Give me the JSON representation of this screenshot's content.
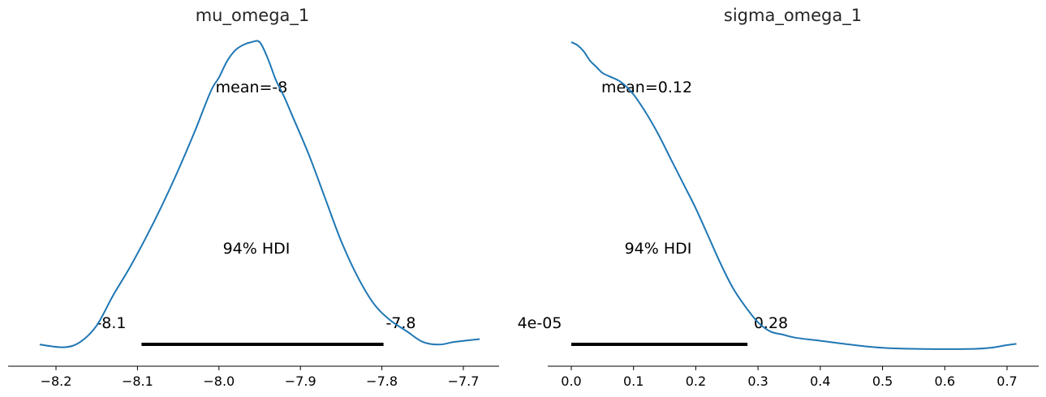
{
  "chart_data": [
    {
      "type": "line",
      "title": "mu_omega_1",
      "xlabel": "",
      "ylabel": "",
      "xlim": [
        -8.22,
        -7.68
      ],
      "xticks": [
        -8.2,
        -8.1,
        -8.0,
        -7.9,
        -7.8,
        -7.7
      ],
      "xtick_labels": [
        "−8.2",
        "−8.1",
        "−8.0",
        "−7.9",
        "−7.8",
        "−7.7"
      ],
      "grid": false,
      "color": "#1f77b4",
      "series": [
        {
          "x": [
            -8.22,
            -8.19,
            -8.17,
            -8.15,
            -8.13,
            -8.11,
            -8.09,
            -8.07,
            -8.05,
            -8.03,
            -8.01,
            -8.0,
            -7.99,
            -7.98,
            -7.97,
            -7.96,
            -7.95,
            -7.94,
            -7.93,
            -7.92,
            -7.91,
            -7.89,
            -7.87,
            -7.85,
            -7.83,
            -7.81,
            -7.79,
            -7.77,
            -7.75,
            -7.73,
            -7.71,
            -7.68
          ],
          "y": [
            0.02,
            0.01,
            0.03,
            0.09,
            0.2,
            0.3,
            0.41,
            0.53,
            0.66,
            0.8,
            0.95,
            1.0,
            1.06,
            1.1,
            1.12,
            1.13,
            1.13,
            1.07,
            0.99,
            0.93,
            0.86,
            0.72,
            0.56,
            0.4,
            0.27,
            0.17,
            0.11,
            0.07,
            0.03,
            0.02,
            0.03,
            0.04
          ]
        }
      ],
      "hdi": {
        "label": "94% HDI",
        "low": -8.095,
        "high": -7.798,
        "low_label": "-8.1",
        "high_label": "-7.8"
      },
      "mean_label": "mean=-8"
    },
    {
      "type": "line",
      "title": "sigma_omega_1",
      "xlabel": "",
      "ylabel": "",
      "xlim": [
        -0.04,
        0.76
      ],
      "xticks": [
        0.0,
        0.1,
        0.2,
        0.3,
        0.4,
        0.5,
        0.6,
        0.7
      ],
      "xtick_labels": [
        "0.0",
        "0.1",
        "0.2",
        "0.3",
        "0.4",
        "0.5",
        "0.6",
        "0.7"
      ],
      "grid": false,
      "color": "#1f77b4",
      "series": [
        {
          "x": [
            0.0,
            0.01,
            0.02,
            0.03,
            0.04,
            0.05,
            0.06,
            0.08,
            0.1,
            0.12,
            0.14,
            0.16,
            0.18,
            0.2,
            0.22,
            0.24,
            0.26,
            0.28,
            0.3,
            0.32,
            0.34,
            0.36,
            0.4,
            0.45,
            0.5,
            0.55,
            0.6,
            0.65,
            0.68,
            0.7,
            0.715
          ],
          "y": [
            1.0,
            0.99,
            0.97,
            0.94,
            0.92,
            0.9,
            0.89,
            0.87,
            0.83,
            0.77,
            0.7,
            0.62,
            0.54,
            0.46,
            0.37,
            0.28,
            0.2,
            0.14,
            0.09,
            0.06,
            0.05,
            0.04,
            0.03,
            0.017,
            0.007,
            0.004,
            0.003,
            0.004,
            0.009,
            0.016,
            0.02
          ]
        }
      ],
      "hdi": {
        "label": "94% HDI",
        "low": 4e-05,
        "high": 0.283,
        "low_label": "4e-05",
        "high_label": "0.28"
      },
      "mean_label": "mean=0.12"
    }
  ]
}
